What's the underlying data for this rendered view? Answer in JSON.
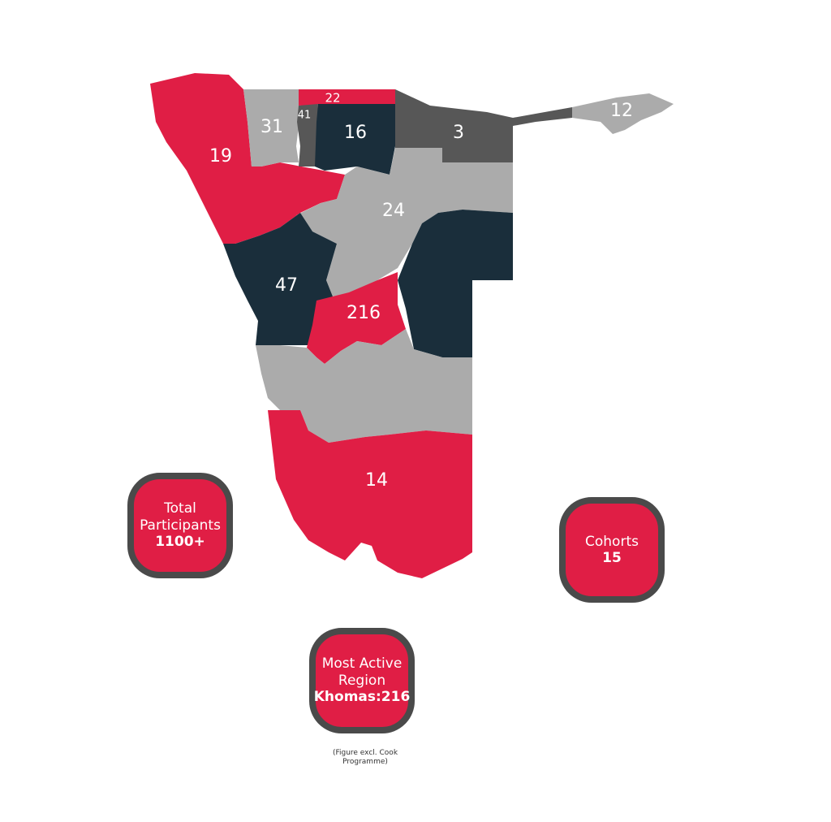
{
  "colors": {
    "red": "#e01e45",
    "navy": "#1a2e3b",
    "gray_light": "#ababab",
    "gray_dark": "#575757",
    "border": "#4a4a4a"
  },
  "regions": [
    {
      "value": "19",
      "color": "red"
    },
    {
      "value": "31",
      "color": "gray_light"
    },
    {
      "value": "41",
      "color": "gray_dark"
    },
    {
      "value": "22",
      "color": "red"
    },
    {
      "value": "16",
      "color": "navy"
    },
    {
      "value": "3",
      "color": "gray_dark"
    },
    {
      "value": "12",
      "color": "gray_light"
    },
    {
      "value": "24",
      "color": "gray_light"
    },
    {
      "value": "47",
      "color": "navy"
    },
    {
      "value": "216",
      "color": "red"
    },
    {
      "value": "",
      "color": "navy"
    },
    {
      "value": "",
      "color": "gray_light"
    },
    {
      "value": "14",
      "color": "red"
    }
  ],
  "stats": {
    "total": {
      "label": "Total Participants",
      "value": "1100+"
    },
    "cohorts": {
      "label": "Cohorts",
      "value": "15"
    },
    "most_active": {
      "label": "Most Active Region",
      "value": "Khomas:216"
    }
  },
  "note": "(Figure excl. Cook Programme)"
}
